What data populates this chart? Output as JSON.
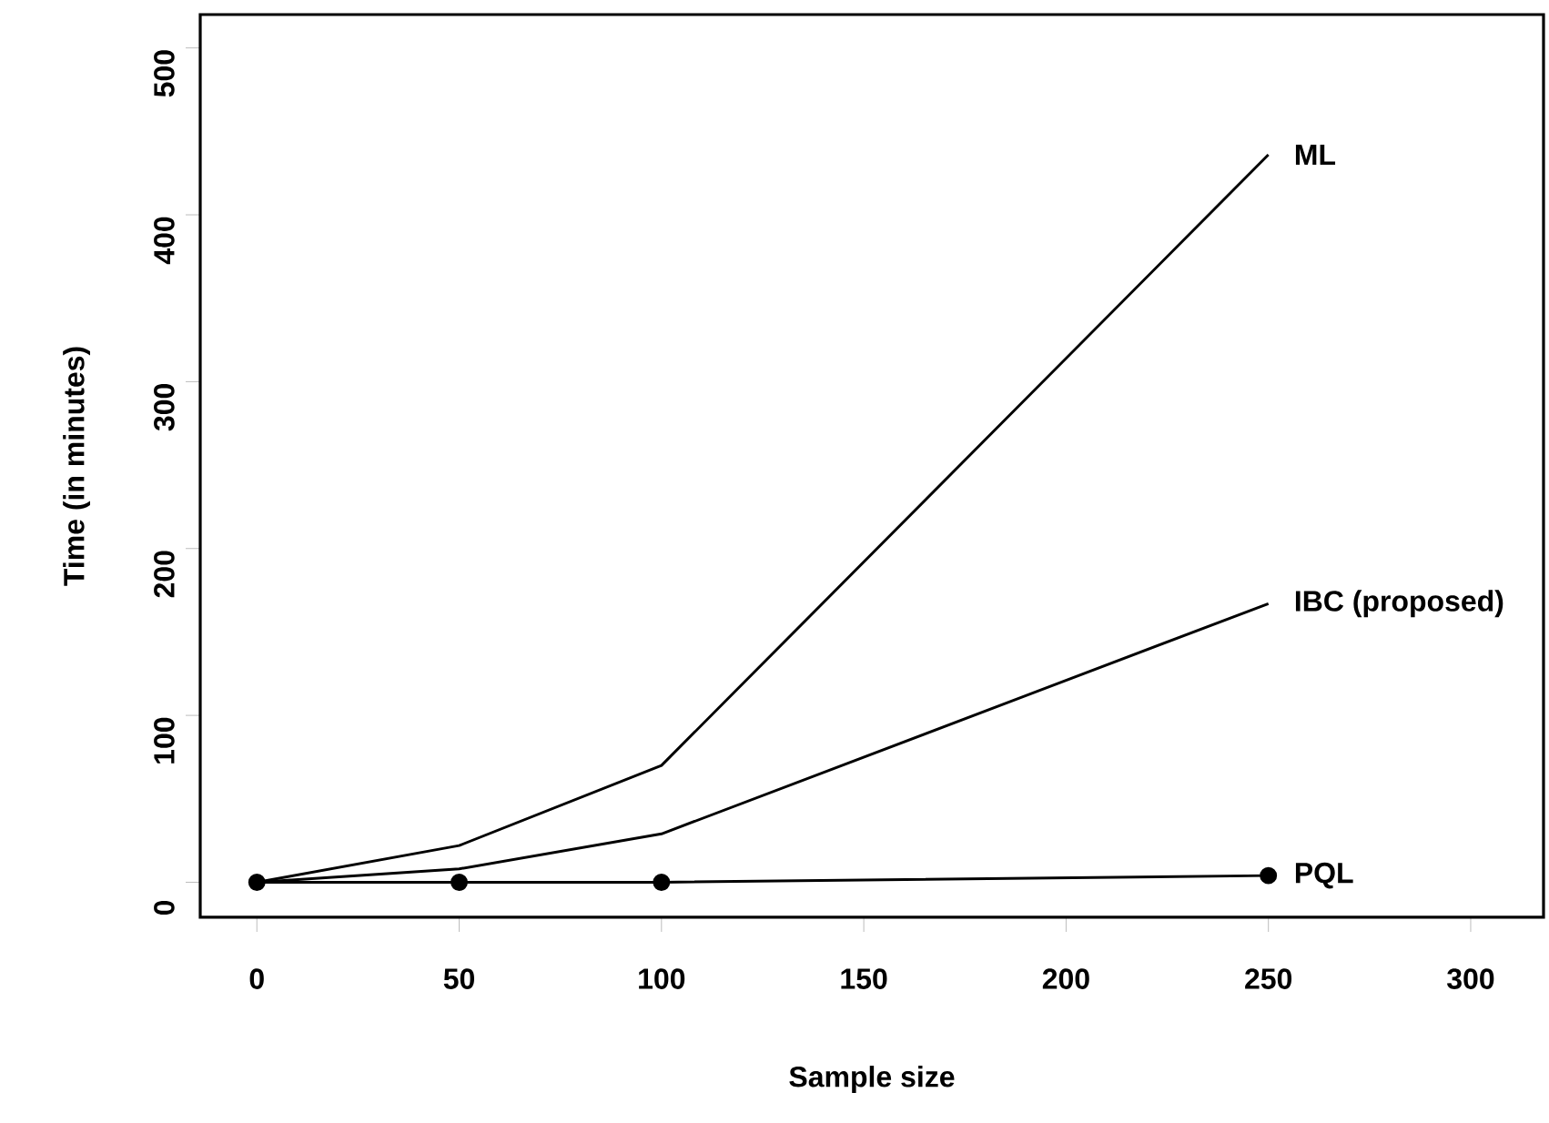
{
  "chart_data": {
    "type": "line",
    "xlabel": "Sample size",
    "ylabel": "Time (in minutes)",
    "x": [
      0,
      50,
      100,
      250
    ],
    "series": [
      {
        "name": "ML",
        "color": "#000000",
        "values": [
          0,
          22,
          70,
          436
        ],
        "marker": "none"
      },
      {
        "name": "IBC (proposed)",
        "color": "#000000",
        "values": [
          0,
          8,
          29,
          167
        ],
        "marker": "none"
      },
      {
        "name": "PQL",
        "color": "#000000",
        "values": [
          0,
          0,
          0,
          4
        ],
        "marker": "circle"
      }
    ],
    "xlim": [
      -14,
      318
    ],
    "ylim": [
      -21,
      520
    ],
    "xticks": [
      0,
      50,
      100,
      150,
      200,
      250,
      300
    ],
    "yticks": [
      0,
      100,
      200,
      300,
      400,
      500
    ],
    "line_style": "solid"
  }
}
